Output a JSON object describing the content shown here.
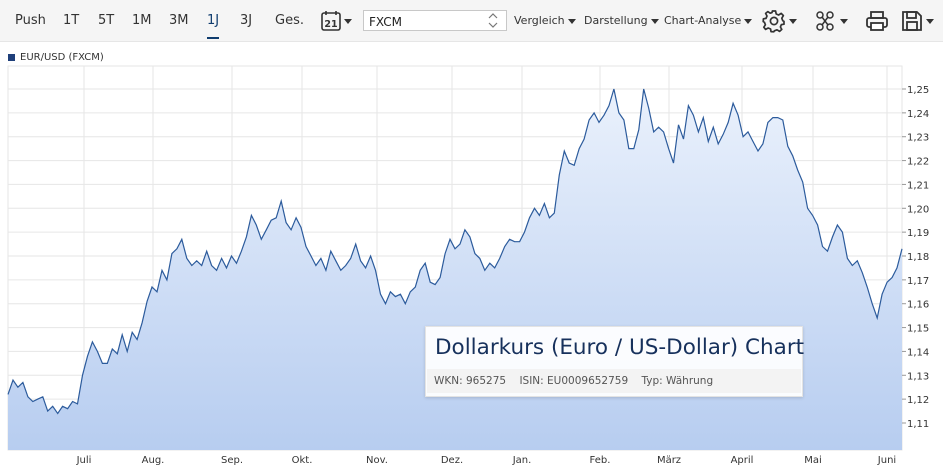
{
  "toolbar": {
    "ranges": [
      "Push",
      "1T",
      "5T",
      "1M",
      "3M",
      "1J",
      "3J",
      "Ges."
    ],
    "active_range": "1J",
    "calendar_day": "21",
    "search": {
      "value": "FXCM"
    },
    "dropdowns": [
      "Vergleich",
      "Darstellung",
      "Chart-Analyse"
    ],
    "icons": [
      "settings-icon",
      "share-icon",
      "print-icon",
      "save-icon"
    ]
  },
  "legend": {
    "label": "EUR/USD (FXCM)",
    "color": "#1f3f7a"
  },
  "info_box": {
    "title": "Dollarkurs (Euro / US-Dollar) Chart",
    "wkn": "WKN: 965275",
    "isin": "ISIN: EU0009652759",
    "typ": "Typ: Währung"
  },
  "colors": {
    "line": "#2c5b9c",
    "fill_top": "#eaf1fc",
    "fill_bottom": "#b7cdf0",
    "grid": "#e6e6e6",
    "accent": "#0f3c6e"
  },
  "chart_data": {
    "type": "area",
    "series": [
      {
        "name": "EUR/USD (FXCM)"
      }
    ],
    "y_ticks": [
      "1,11",
      "1,12",
      "1,13",
      "1,14",
      "1,15",
      "1,16",
      "1,17",
      "1,18",
      "1,19",
      "1,20",
      "1,21",
      "1,22",
      "1,23",
      "1,24",
      "1,25"
    ],
    "x_ticks": [
      "Juli",
      "Aug.",
      "Sep.",
      "Okt.",
      "Nov.",
      "Dez.",
      "Jan.",
      "Feb.",
      "März",
      "April",
      "Mai",
      "Juni"
    ],
    "ylim": [
      1.105,
      1.256
    ],
    "grid": true,
    "y_axis_side": "right",
    "points": [
      [
        0,
        1.122
      ],
      [
        2,
        1.128
      ],
      [
        4,
        1.125
      ],
      [
        6,
        1.127
      ],
      [
        8,
        1.121
      ],
      [
        10,
        1.119
      ],
      [
        12,
        1.12
      ],
      [
        14,
        1.121
      ],
      [
        16,
        1.115
      ],
      [
        18,
        1.117
      ],
      [
        20,
        1.114
      ],
      [
        22,
        1.117
      ],
      [
        24,
        1.116
      ],
      [
        26,
        1.119
      ],
      [
        28,
        1.118
      ],
      [
        30,
        1.13
      ],
      [
        32,
        1.138
      ],
      [
        34,
        1.144
      ],
      [
        36,
        1.14
      ],
      [
        38,
        1.135
      ],
      [
        40,
        1.135
      ],
      [
        42,
        1.141
      ],
      [
        44,
        1.139
      ],
      [
        46,
        1.147
      ],
      [
        48,
        1.14
      ],
      [
        50,
        1.148
      ],
      [
        52,
        1.145
      ],
      [
        54,
        1.152
      ],
      [
        56,
        1.161
      ],
      [
        58,
        1.167
      ],
      [
        60,
        1.165
      ],
      [
        62,
        1.174
      ],
      [
        64,
        1.17
      ],
      [
        66,
        1.181
      ],
      [
        68,
        1.183
      ],
      [
        70,
        1.187
      ],
      [
        72,
        1.179
      ],
      [
        74,
        1.176
      ],
      [
        76,
        1.178
      ],
      [
        78,
        1.176
      ],
      [
        80,
        1.182
      ],
      [
        82,
        1.176
      ],
      [
        84,
        1.174
      ],
      [
        86,
        1.179
      ],
      [
        88,
        1.175
      ],
      [
        90,
        1.18
      ],
      [
        92,
        1.177
      ],
      [
        94,
        1.182
      ],
      [
        96,
        1.188
      ],
      [
        98,
        1.197
      ],
      [
        100,
        1.193
      ],
      [
        102,
        1.187
      ],
      [
        104,
        1.191
      ],
      [
        106,
        1.195
      ],
      [
        108,
        1.196
      ],
      [
        110,
        1.203
      ],
      [
        112,
        1.194
      ],
      [
        114,
        1.191
      ],
      [
        116,
        1.196
      ],
      [
        118,
        1.192
      ],
      [
        120,
        1.184
      ],
      [
        122,
        1.18
      ],
      [
        124,
        1.176
      ],
      [
        126,
        1.179
      ],
      [
        128,
        1.174
      ],
      [
        130,
        1.182
      ],
      [
        132,
        1.178
      ],
      [
        134,
        1.174
      ],
      [
        136,
        1.176
      ],
      [
        138,
        1.179
      ],
      [
        140,
        1.185
      ],
      [
        142,
        1.178
      ],
      [
        144,
        1.175
      ],
      [
        146,
        1.18
      ],
      [
        148,
        1.174
      ],
      [
        150,
        1.164
      ],
      [
        152,
        1.16
      ],
      [
        154,
        1.165
      ],
      [
        156,
        1.163
      ],
      [
        158,
        1.164
      ],
      [
        160,
        1.16
      ],
      [
        162,
        1.165
      ],
      [
        164,
        1.167
      ],
      [
        166,
        1.174
      ],
      [
        168,
        1.177
      ],
      [
        170,
        1.169
      ],
      [
        172,
        1.168
      ],
      [
        174,
        1.171
      ],
      [
        176,
        1.181
      ],
      [
        178,
        1.187
      ],
      [
        180,
        1.183
      ],
      [
        182,
        1.185
      ],
      [
        184,
        1.191
      ],
      [
        186,
        1.188
      ],
      [
        188,
        1.181
      ],
      [
        190,
        1.179
      ],
      [
        192,
        1.174
      ],
      [
        194,
        1.177
      ],
      [
        196,
        1.175
      ],
      [
        198,
        1.179
      ],
      [
        200,
        1.184
      ],
      [
        202,
        1.187
      ],
      [
        204,
        1.186
      ],
      [
        206,
        1.186
      ],
      [
        208,
        1.19
      ],
      [
        210,
        1.196
      ],
      [
        212,
        1.2
      ],
      [
        214,
        1.197
      ],
      [
        216,
        1.202
      ],
      [
        218,
        1.196
      ],
      [
        220,
        1.198
      ],
      [
        222,
        1.214
      ],
      [
        224,
        1.224
      ],
      [
        226,
        1.219
      ],
      [
        228,
        1.218
      ],
      [
        230,
        1.225
      ],
      [
        232,
        1.229
      ],
      [
        234,
        1.237
      ],
      [
        236,
        1.24
      ],
      [
        238,
        1.236
      ],
      [
        240,
        1.239
      ],
      [
        242,
        1.243
      ],
      [
        244,
        1.25
      ],
      [
        246,
        1.24
      ],
      [
        248,
        1.237
      ],
      [
        250,
        1.225
      ],
      [
        252,
        1.225
      ],
      [
        254,
        1.233
      ],
      [
        256,
        1.25
      ],
      [
        258,
        1.242
      ],
      [
        260,
        1.232
      ],
      [
        262,
        1.234
      ],
      [
        264,
        1.232
      ],
      [
        266,
        1.225
      ],
      [
        268,
        1.219
      ],
      [
        270,
        1.235
      ],
      [
        272,
        1.229
      ],
      [
        274,
        1.243
      ],
      [
        276,
        1.239
      ],
      [
        278,
        1.232
      ],
      [
        280,
        1.238
      ],
      [
        282,
        1.228
      ],
      [
        284,
        1.234
      ],
      [
        286,
        1.227
      ],
      [
        288,
        1.231
      ],
      [
        290,
        1.236
      ],
      [
        292,
        1.244
      ],
      [
        294,
        1.239
      ],
      [
        296,
        1.23
      ],
      [
        298,
        1.232
      ],
      [
        300,
        1.228
      ],
      [
        302,
        1.224
      ],
      [
        304,
        1.227
      ],
      [
        306,
        1.236
      ],
      [
        308,
        1.238
      ],
      [
        310,
        1.238
      ],
      [
        312,
        1.237
      ],
      [
        314,
        1.226
      ],
      [
        316,
        1.222
      ],
      [
        318,
        1.216
      ],
      [
        320,
        1.211
      ],
      [
        322,
        1.2
      ],
      [
        324,
        1.197
      ],
      [
        326,
        1.193
      ],
      [
        328,
        1.184
      ],
      [
        330,
        1.182
      ],
      [
        332,
        1.188
      ],
      [
        334,
        1.193
      ],
      [
        336,
        1.19
      ],
      [
        338,
        1.179
      ],
      [
        340,
        1.176
      ],
      [
        342,
        1.178
      ],
      [
        344,
        1.173
      ],
      [
        346,
        1.167
      ],
      [
        348,
        1.16
      ],
      [
        350,
        1.154
      ],
      [
        352,
        1.164
      ],
      [
        354,
        1.169
      ],
      [
        356,
        1.171
      ],
      [
        358,
        1.175
      ],
      [
        360,
        1.183
      ]
    ]
  }
}
